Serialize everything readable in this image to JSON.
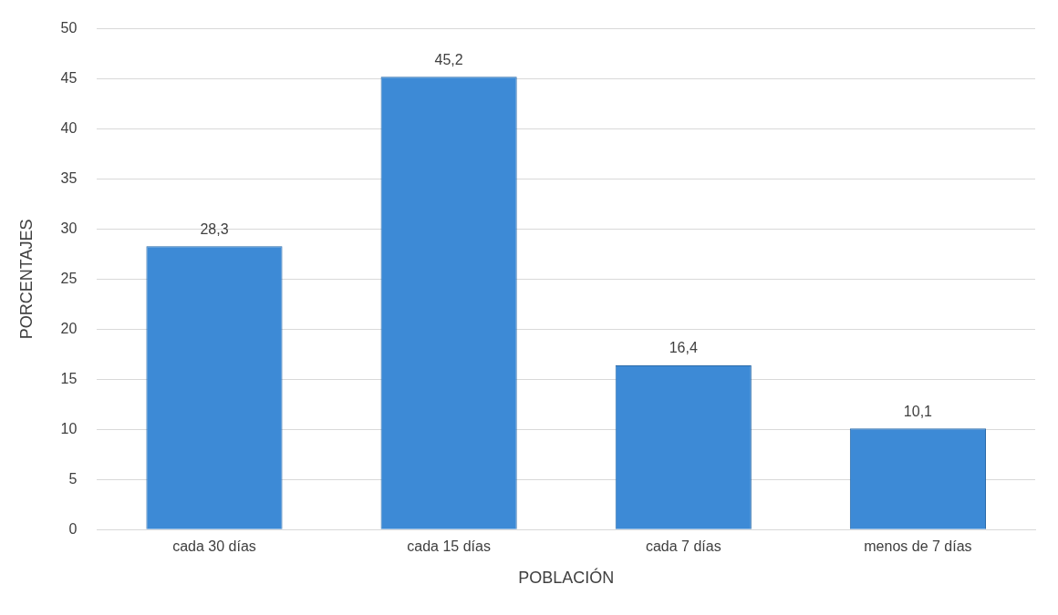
{
  "chart_data": {
    "type": "bar",
    "xlabel": "POBLACIÓN",
    "ylabel": "PORCENTAJES",
    "categories": [
      "cada 30 días",
      "cada 15 días",
      "cada 7 días",
      "menos de 7 días"
    ],
    "values": [
      28.3,
      45.2,
      16.4,
      10.1
    ],
    "color": "#3d8ad6",
    "ylim": [
      0,
      50
    ],
    "yticks": [
      0,
      5,
      10,
      15,
      20,
      25,
      30,
      35,
      40,
      45,
      50
    ],
    "grid": "y",
    "data_labels": true,
    "value_labels": [
      "28,3",
      "45,2",
      "16,4",
      "10,1"
    ]
  }
}
